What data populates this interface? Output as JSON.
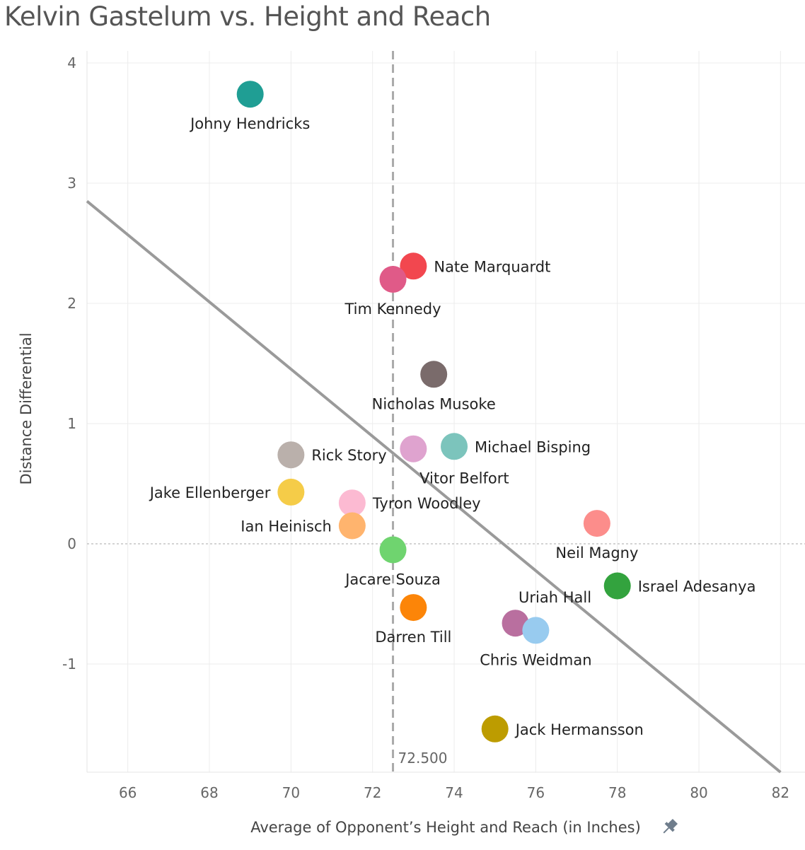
{
  "chart_data": {
    "type": "scatter",
    "title": "Kelvin Gastelum vs. Height and Reach",
    "xlabel": "Average of Opponent’s Height and Reach (in Inches)",
    "ylabel": "Distance Differential",
    "xlim": [
      65,
      82.6
    ],
    "ylim": [
      -1.9,
      4.1
    ],
    "x_ticks": [
      66,
      68,
      70,
      72,
      74,
      76,
      78,
      80,
      82
    ],
    "y_ticks": [
      -1,
      0,
      1,
      2,
      3,
      4
    ],
    "grid": true,
    "reference_line": {
      "x": 72.5,
      "label": "72.500",
      "style": "dashed"
    },
    "zero_line": {
      "y": 0,
      "style": "dotted"
    },
    "trend_line": {
      "x": [
        65,
        82
      ],
      "y": [
        2.85,
        -1.9
      ]
    },
    "points": [
      {
        "name": "Johny Hendricks",
        "x": 69,
        "y": 3.74,
        "color": "#1f9e94",
        "label_pos": "below"
      },
      {
        "name": "Nate Marquardt",
        "x": 73,
        "y": 2.31,
        "color": "#f2474f",
        "label_pos": "right"
      },
      {
        "name": "Tim Kennedy",
        "x": 72.5,
        "y": 2.2,
        "color": "#e05a88",
        "label_pos": "below"
      },
      {
        "name": "Nicholas Musoke",
        "x": 73.5,
        "y": 1.41,
        "color": "#7a6b6b",
        "label_pos": "below"
      },
      {
        "name": "Michael Bisping",
        "x": 74,
        "y": 0.81,
        "color": "#7cc4bc",
        "label_pos": "right"
      },
      {
        "name": "Vitor Belfort",
        "x": 73,
        "y": 0.79,
        "color": "#dfa3cf",
        "label_pos": "below-right"
      },
      {
        "name": "Rick Story",
        "x": 70,
        "y": 0.74,
        "color": "#bab0ab",
        "label_pos": "right"
      },
      {
        "name": "Jake Ellenberger",
        "x": 70,
        "y": 0.43,
        "color": "#f5cc48",
        "label_pos": "left"
      },
      {
        "name": "Tyron Woodley",
        "x": 71.5,
        "y": 0.34,
        "color": "#fcbad2",
        "label_pos": "right"
      },
      {
        "name": "Ian Heinisch",
        "x": 71.5,
        "y": 0.15,
        "color": "#ffb46e",
        "label_pos": "left"
      },
      {
        "name": "Neil Magny",
        "x": 77.5,
        "y": 0.17,
        "color": "#fc8d8b",
        "label_pos": "below"
      },
      {
        "name": "Jacare Souza",
        "x": 72.5,
        "y": -0.05,
        "color": "#6fd46f",
        "label_pos": "below"
      },
      {
        "name": "Israel Adesanya",
        "x": 78,
        "y": -0.35,
        "color": "#33a33e",
        "label_pos": "right"
      },
      {
        "name": "Darren Till",
        "x": 73,
        "y": -0.53,
        "color": "#fc8508",
        "label_pos": "below"
      },
      {
        "name": "Uriah Hall",
        "x": 75.5,
        "y": -0.66,
        "color": "#b96f9f",
        "label_pos": "above-right"
      },
      {
        "name": "Chris Weidman",
        "x": 76,
        "y": -0.72,
        "color": "#98cbef",
        "label_pos": "below"
      },
      {
        "name": "Jack Hermansson",
        "x": 75,
        "y": -1.54,
        "color": "#bd9c00",
        "label_pos": "right"
      }
    ]
  }
}
